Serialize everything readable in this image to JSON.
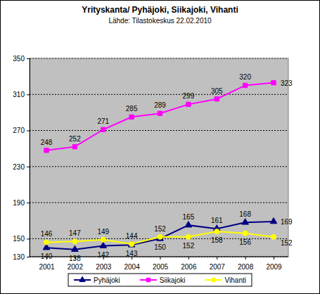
{
  "chart_data": {
    "type": "line",
    "title": "Yrityskanta/ Pyhäjoki, Siikajoki, Vihanti",
    "subtitle": "Lähde: Tilastokeskus 22.02.2010",
    "categories": [
      "2001",
      "2002",
      "2003",
      "2004",
      "2005",
      "2006",
      "2007",
      "2008",
      "2009"
    ],
    "series": [
      {
        "name": "Pyhäjoki",
        "color": "#000080",
        "marker": "triangle",
        "values": [
          140,
          138,
          142,
          143,
          150,
          165,
          161,
          168,
          169
        ]
      },
      {
        "name": "Siikajoki",
        "color": "#ff00ff",
        "marker": "square",
        "values": [
          248,
          252,
          271,
          285,
          289,
          299,
          305,
          320,
          323
        ]
      },
      {
        "name": "Vihanti",
        "color": "#ffff00",
        "marker": "circle",
        "values": [
          146,
          147,
          149,
          144,
          152,
          152,
          158,
          156,
          152
        ]
      }
    ],
    "ylim": [
      130,
      350
    ],
    "yticks": [
      130,
      150,
      190,
      230,
      270,
      310,
      350
    ],
    "grid": true,
    "legend": "bottom",
    "data_labels": true
  }
}
